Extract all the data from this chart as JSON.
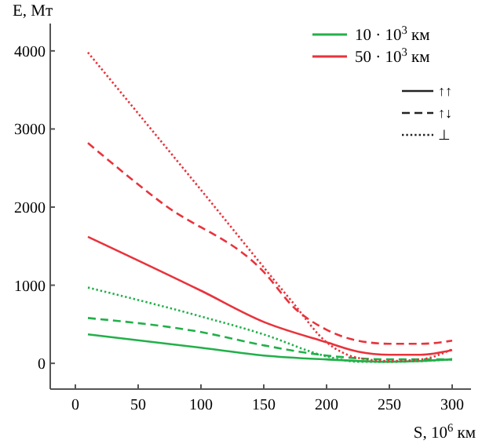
{
  "chart_data": {
    "type": "line",
    "xlabel": "S, 10$^{6}$ км",
    "ylabel": "E, Мт",
    "xlim": [
      -20,
      315
    ],
    "ylim": [
      -330,
      4350
    ],
    "xticks": [
      0,
      50,
      100,
      150,
      200,
      250,
      300
    ],
    "yticks": [
      0,
      1000,
      2000,
      3000,
      4000
    ],
    "grid": false,
    "legend": "top right",
    "annotations": [
      "↑↑",
      "↑↓",
      "⊥"
    ],
    "series": [
      {
        "name": "10 · 10$^{3}$ км",
        "color": "#22b04a",
        "line_style": "solid",
        "x": [
          10,
          100,
          150,
          200,
          250,
          300
        ],
        "values": [
          370,
          200,
          100,
          50,
          20,
          50
        ]
      },
      {
        "name": "50 · 10$^{3}$ км",
        "color": "#e8333c",
        "line_style": "solid",
        "x": [
          10,
          100,
          150,
          200,
          225,
          250,
          275,
          300
        ],
        "values": [
          1620,
          930,
          530,
          270,
          150,
          110,
          110,
          170
        ]
      },
      {
        "color": "#22b04a",
        "line_style": "dashed",
        "x": [
          10,
          100,
          150,
          200,
          250,
          300
        ],
        "values": [
          580,
          400,
          230,
          100,
          50,
          50
        ]
      },
      {
        "color": "#e8333c",
        "line_style": "dashed",
        "x": [
          10,
          70,
          150,
          175,
          200,
          225,
          250,
          275,
          300
        ],
        "values": [
          2820,
          2040,
          1170,
          700,
          430,
          290,
          250,
          250,
          290
        ]
      },
      {
        "color": "#22b04a",
        "line_style": "dotted",
        "x": [
          10,
          100,
          150,
          200,
          225,
          250,
          300
        ],
        "values": [
          970,
          600,
          370,
          90,
          20,
          20,
          50
        ]
      },
      {
        "color": "#e8333c",
        "line_style": "dotted",
        "x": [
          10,
          100,
          172,
          200,
          225,
          250,
          275,
          300
        ],
        "values": [
          3980,
          2220,
          800,
          270,
          70,
          30,
          50,
          180
        ]
      }
    ]
  }
}
